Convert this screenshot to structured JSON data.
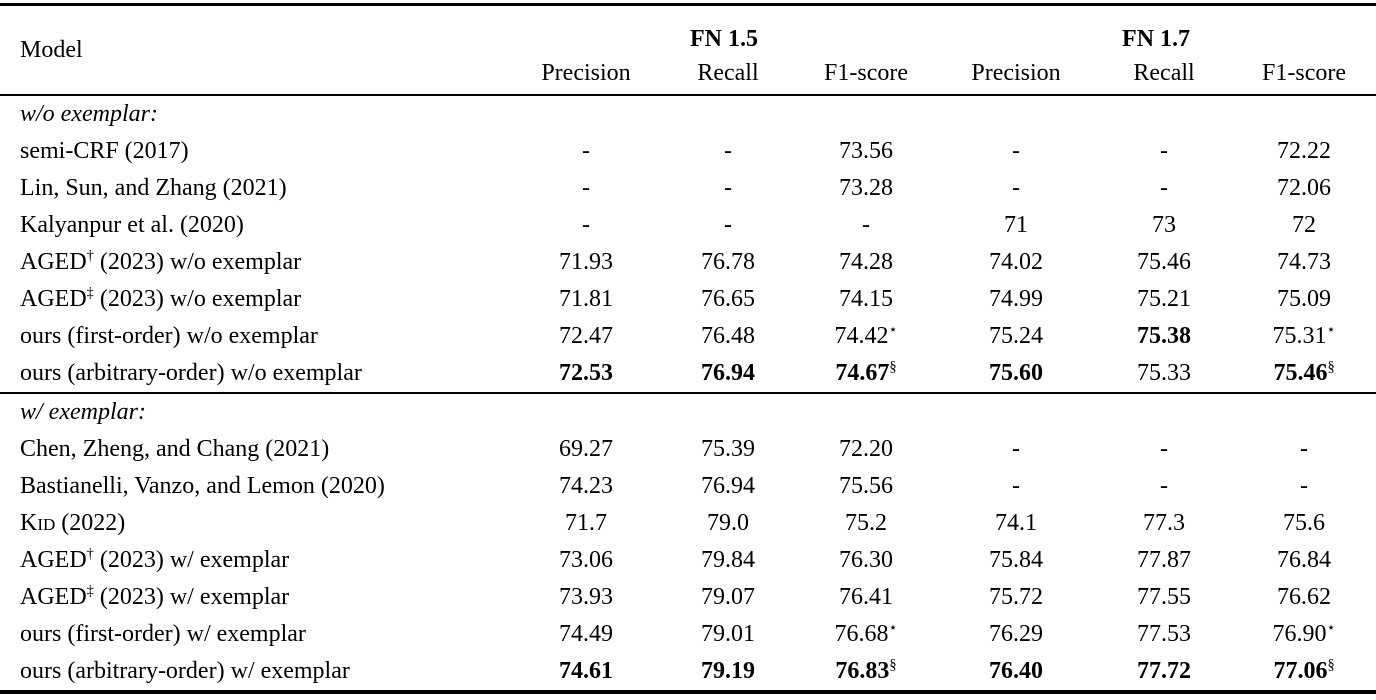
{
  "table": {
    "header": {
      "model": "Model",
      "groups": [
        {
          "label": "FN 1.5"
        },
        {
          "label": "FN 1.7"
        }
      ],
      "metrics": [
        "Precision",
        "Recall",
        "F1-score"
      ]
    },
    "sections": [
      {
        "heading": "w/o exemplar:",
        "rows": [
          {
            "label": "semi-CRF (2017)",
            "cells": [
              {
                "v": "-"
              },
              {
                "v": "-"
              },
              {
                "v": "73.56"
              },
              {
                "v": "-"
              },
              {
                "v": "-"
              },
              {
                "v": "72.22"
              }
            ]
          },
          {
            "label": "Lin, Sun, and Zhang (2021)",
            "cells": [
              {
                "v": "-"
              },
              {
                "v": "-"
              },
              {
                "v": "73.28"
              },
              {
                "v": "-"
              },
              {
                "v": "-"
              },
              {
                "v": "72.06"
              }
            ]
          },
          {
            "label": "Kalyanpur et al. (2020)",
            "cells": [
              {
                "v": "-"
              },
              {
                "v": "-"
              },
              {
                "v": "-"
              },
              {
                "v": "71"
              },
              {
                "v": "73"
              },
              {
                "v": "72"
              }
            ]
          },
          {
            "label_pre": "AGED",
            "label_sup": "†",
            "label_post": " (2023) w/o exemplar",
            "cells": [
              {
                "v": "71.93"
              },
              {
                "v": "76.78"
              },
              {
                "v": "74.28"
              },
              {
                "v": "74.02"
              },
              {
                "v": "75.46"
              },
              {
                "v": "74.73"
              }
            ]
          },
          {
            "label_pre": "AGED",
            "label_sup": "‡",
            "label_post": " (2023) w/o exemplar",
            "cells": [
              {
                "v": "71.81"
              },
              {
                "v": "76.65"
              },
              {
                "v": "74.15"
              },
              {
                "v": "74.99"
              },
              {
                "v": "75.21"
              },
              {
                "v": "75.09"
              }
            ]
          },
          {
            "label": "ours (first-order) w/o exemplar",
            "cells": [
              {
                "v": "72.47"
              },
              {
                "v": "76.48"
              },
              {
                "v": "74.42",
                "sup": "⋆"
              },
              {
                "v": "75.24"
              },
              {
                "v": "75.38",
                "bold": true
              },
              {
                "v": "75.31",
                "sup": "⋆"
              }
            ]
          },
          {
            "label": "ours (arbitrary-order) w/o exemplar",
            "cells": [
              {
                "v": "72.53",
                "bold": true
              },
              {
                "v": "76.94",
                "bold": true
              },
              {
                "v": "74.67",
                "bold": true,
                "sup": "§"
              },
              {
                "v": "75.60",
                "bold": true
              },
              {
                "v": "75.33"
              },
              {
                "v": "75.46",
                "bold": true,
                "sup": "§"
              }
            ]
          }
        ]
      },
      {
        "heading": "w/ exemplar:",
        "rows": [
          {
            "label": "Chen, Zheng, and Chang (2021)",
            "cells": [
              {
                "v": "69.27"
              },
              {
                "v": "75.39"
              },
              {
                "v": "72.20"
              },
              {
                "v": "-"
              },
              {
                "v": "-"
              },
              {
                "v": "-"
              }
            ]
          },
          {
            "label": "Bastianelli, Vanzo, and Lemon (2020)",
            "cells": [
              {
                "v": "74.23"
              },
              {
                "v": "76.94"
              },
              {
                "v": "75.56"
              },
              {
                "v": "-"
              },
              {
                "v": "-"
              },
              {
                "v": "-"
              }
            ]
          },
          {
            "label": "Kid (2022)",
            "smallcaps": true,
            "cells": [
              {
                "v": "71.7"
              },
              {
                "v": "79.0"
              },
              {
                "v": "75.2"
              },
              {
                "v": "74.1"
              },
              {
                "v": "77.3"
              },
              {
                "v": "75.6"
              }
            ]
          },
          {
            "label_pre": "AGED",
            "label_sup": "†",
            "label_post": " (2023) w/ exemplar",
            "cells": [
              {
                "v": "73.06"
              },
              {
                "v": "79.84"
              },
              {
                "v": "76.30"
              },
              {
                "v": "75.84"
              },
              {
                "v": "77.87"
              },
              {
                "v": "76.84"
              }
            ]
          },
          {
            "label_pre": "AGED",
            "label_sup": "‡",
            "label_post": " (2023) w/ exemplar",
            "cells": [
              {
                "v": "73.93"
              },
              {
                "v": "79.07"
              },
              {
                "v": "76.41"
              },
              {
                "v": "75.72"
              },
              {
                "v": "77.55"
              },
              {
                "v": "76.62"
              }
            ]
          },
          {
            "label": "ours (first-order) w/ exemplar",
            "cells": [
              {
                "v": "74.49"
              },
              {
                "v": "79.01"
              },
              {
                "v": "76.68",
                "sup": "⋆"
              },
              {
                "v": "76.29"
              },
              {
                "v": "77.53"
              },
              {
                "v": "76.90",
                "sup": "⋆"
              }
            ]
          },
          {
            "label": "ours (arbitrary-order) w/ exemplar",
            "cells": [
              {
                "v": "74.61",
                "bold": true
              },
              {
                "v": "79.19",
                "bold": true
              },
              {
                "v": "76.83",
                "bold": true,
                "sup": "§"
              },
              {
                "v": "76.40",
                "bold": true
              },
              {
                "v": "77.72",
                "bold": true
              },
              {
                "v": "77.06",
                "bold": true,
                "sup": "§"
              }
            ]
          }
        ]
      }
    ]
  }
}
